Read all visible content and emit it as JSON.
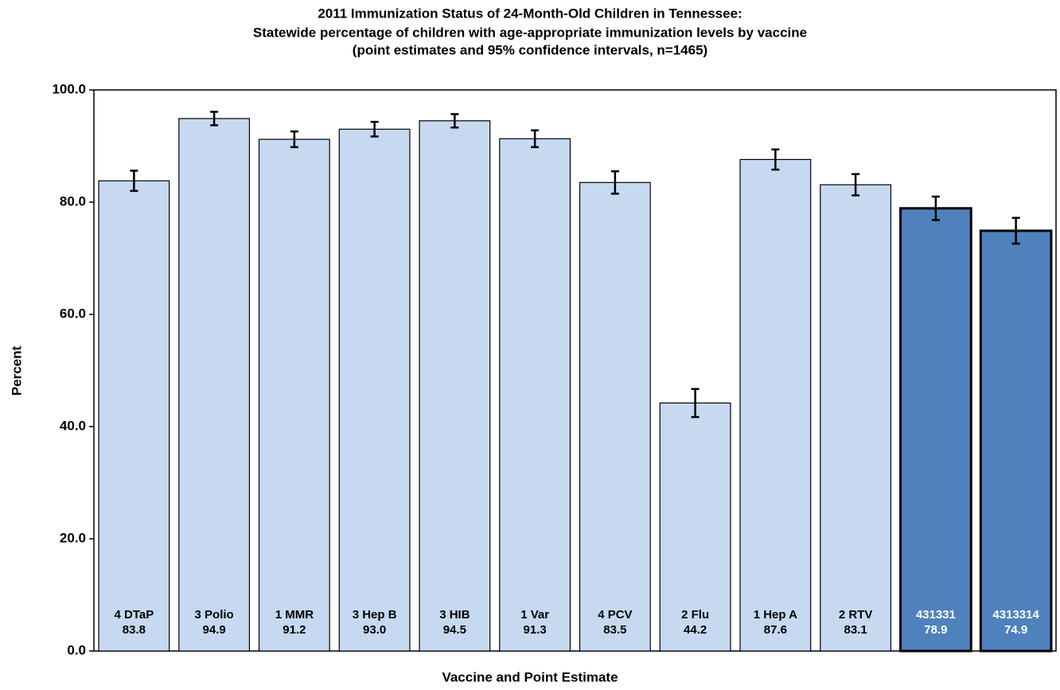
{
  "chart_data": {
    "type": "bar",
    "title": "2011 Immunization  Status of 24-Month-Old Children in Tennessee:",
    "subtitle": "Statewide percentage of children with age-appropriate immunization levels by vaccine",
    "note": "(point estimates and 95% confidence intervals, n=1465)",
    "x_label": "Vaccine and Point Estimate",
    "y_label": "Percent",
    "categories": [
      "4 DTaP",
      "3 Polio",
      "1 MMR",
      "3 Hep B",
      "3 HIB",
      "1 Var",
      "4 PCV",
      "2 Flu",
      "1 Hep A",
      "2 RTV",
      "431331",
      "4313314"
    ],
    "values": [
      83.8,
      94.9,
      91.2,
      93.0,
      94.5,
      91.3,
      83.5,
      44.2,
      87.6,
      83.1,
      78.9,
      74.9
    ],
    "value_labels": [
      "83.8",
      "94.9",
      "91.2",
      "93.0",
      "94.5",
      "91.3",
      "83.5",
      "44.2",
      "87.6",
      "83.1",
      "78.9",
      "74.9"
    ],
    "errors": [
      1.8,
      1.2,
      1.4,
      1.3,
      1.2,
      1.5,
      2.0,
      2.5,
      1.8,
      1.9,
      2.1,
      2.3
    ],
    "colors": [
      "#c6d9f1",
      "#c6d9f1",
      "#c6d9f1",
      "#c6d9f1",
      "#c6d9f1",
      "#c6d9f1",
      "#c6d9f1",
      "#c6d9f1",
      "#c6d9f1",
      "#c6d9f1",
      "#4f81bd",
      "#4f81bd"
    ],
    "ylim": [
      0,
      100
    ],
    "yticks": [
      {
        "value": 0,
        "label": "0.0"
      },
      {
        "value": 20,
        "label": "20.0"
      },
      {
        "value": 40,
        "label": "40.0"
      },
      {
        "value": 60,
        "label": "60.0"
      },
      {
        "value": 80,
        "label": "80.0"
      },
      {
        "value": 100,
        "label": "100.0"
      }
    ],
    "grid": false
  }
}
